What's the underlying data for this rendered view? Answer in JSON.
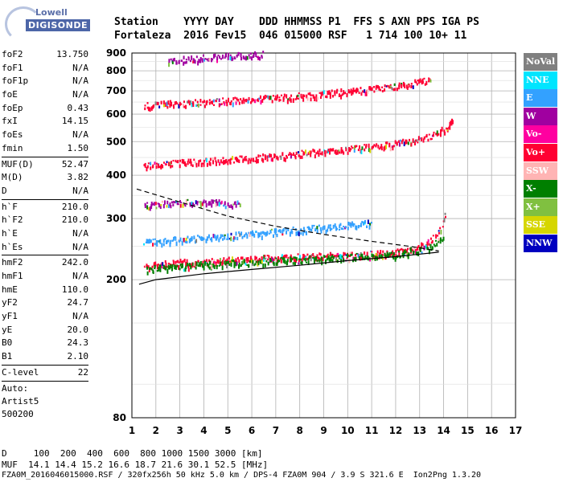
{
  "header": {
    "row1": "Station    YYYY DAY    DDD HHMMSS P1  FFS S AXN PPS IGA PS",
    "row2": "Fortaleza  2016 Fev15  046 015000 RSF   1 714 100 10+ 11"
  },
  "logo": {
    "line1": "Lowell",
    "line2": "DIGISONDE"
  },
  "params": [
    [
      {
        "k": "foF2",
        "v": "13.750"
      },
      {
        "k": "foF1",
        "v": "N/A"
      },
      {
        "k": "foF1p",
        "v": "N/A"
      },
      {
        "k": "foE",
        "v": "N/A"
      },
      {
        "k": "foEp",
        "v": "0.43"
      },
      {
        "k": "fxI",
        "v": "14.15"
      },
      {
        "k": "foEs",
        "v": "N/A"
      },
      {
        "k": "fmin",
        "v": "1.50"
      }
    ],
    [
      {
        "k": "MUF(D)",
        "v": "52.47"
      },
      {
        "k": "M(D)",
        "v": "3.82"
      },
      {
        "k": "D",
        "v": "N/A"
      }
    ],
    [
      {
        "k": "h`F",
        "v": "210.0"
      },
      {
        "k": "h`F2",
        "v": "210.0"
      },
      {
        "k": "h`E",
        "v": "N/A"
      },
      {
        "k": "h`Es",
        "v": "N/A"
      }
    ],
    [
      {
        "k": "hmF2",
        "v": "242.0"
      },
      {
        "k": "hmF1",
        "v": "N/A"
      },
      {
        "k": "hmE",
        "v": "110.0"
      },
      {
        "k": "yF2",
        "v": "24.7"
      },
      {
        "k": "yF1",
        "v": "N/A"
      },
      {
        "k": "yE",
        "v": "20.0"
      },
      {
        "k": "B0",
        "v": "24.3"
      },
      {
        "k": "B1",
        "v": "2.10"
      }
    ],
    [
      {
        "k": "C-level",
        "v": "22"
      }
    ]
  ],
  "extra": [
    "Auto:",
    "Artist5",
    "500200"
  ],
  "footer": {
    "line1": "D     100  200  400  600  800 1000 1500 3000 [km]",
    "line2": "MUF  14.1 14.4 15.2 16.6 18.7 21.6 30.1 52.5 [MHz]",
    "line3": "FZA0M_2016046015000.RSF / 320fx256h 50 kHz 5.0 km / DPS-4 FZA0M 904 / 3.9 S 321.6 E  Ion2Png 1.3.20"
  },
  "legend": [
    {
      "label": "NoVal",
      "color": "#808080"
    },
    {
      "label": "NNE",
      "color": "#00e5ff"
    },
    {
      "label": "E",
      "color": "#33a1ff"
    },
    {
      "label": "W",
      "color": "#a000a0"
    },
    {
      "label": "Vo-",
      "color": "#ff00a0"
    },
    {
      "label": "Vo+",
      "color": "#ff0033"
    },
    {
      "label": "SSW",
      "color": "#ffb4b4"
    },
    {
      "label": "X-",
      "color": "#007f00"
    },
    {
      "label": "X+",
      "color": "#80c040"
    },
    {
      "label": "SSE",
      "color": "#d6d600"
    },
    {
      "label": "NNW",
      "color": "#0000c0"
    }
  ],
  "chart_data": {
    "type": "scatter",
    "xlim": [
      1,
      17
    ],
    "ylim": [
      80,
      900
    ],
    "yscale": "log",
    "x_ticks": [
      1,
      2,
      3,
      4,
      5,
      6,
      7,
      8,
      9,
      10,
      11,
      12,
      13,
      14,
      15,
      16,
      17
    ],
    "y_ticks": [
      80,
      200,
      300,
      400,
      500,
      600,
      700,
      800,
      900
    ],
    "grid": true,
    "traces": [
      {
        "name": "F2-trace",
        "color": "#ff0033",
        "points": [
          [
            1.5,
            220
          ],
          [
            3,
            225
          ],
          [
            5,
            228
          ],
          [
            7,
            232
          ],
          [
            9,
            235
          ],
          [
            11,
            238
          ],
          [
            12.5,
            243
          ],
          [
            13.3,
            255
          ],
          [
            13.8,
            275
          ],
          [
            14.1,
            310
          ]
        ]
      },
      {
        "name": "F2-x",
        "color": "#007f00",
        "points": [
          [
            1.6,
            215
          ],
          [
            4,
            222
          ],
          [
            7,
            228
          ],
          [
            10,
            233
          ],
          [
            12,
            237
          ],
          [
            13.5,
            250
          ],
          [
            14,
            270
          ]
        ]
      },
      {
        "name": "E-trace",
        "color": "#33a1ff",
        "points": [
          [
            1.5,
            258
          ],
          [
            4,
            265
          ],
          [
            6,
            272
          ],
          [
            8,
            280
          ],
          [
            10,
            288
          ],
          [
            11,
            293
          ]
        ]
      },
      {
        "name": "W-cluster",
        "color": "#a000a0",
        "points": [
          [
            1.5,
            330
          ],
          [
            2.5,
            332
          ],
          [
            3.5,
            335
          ],
          [
            4.5,
            334
          ],
          [
            5.5,
            333
          ]
        ]
      },
      {
        "name": "2hop",
        "color": "#ff0033",
        "points": [
          [
            1.5,
            430
          ],
          [
            4,
            440
          ],
          [
            6,
            450
          ],
          [
            8,
            463
          ],
          [
            10,
            478
          ],
          [
            12,
            495
          ],
          [
            13.5,
            520
          ],
          [
            14.2,
            555
          ],
          [
            14.4,
            580
          ]
        ]
      },
      {
        "name": "3hop",
        "color": "#ff0033",
        "points": [
          [
            1.5,
            640
          ],
          [
            4,
            652
          ],
          [
            6,
            665
          ],
          [
            8,
            680
          ],
          [
            10,
            700
          ],
          [
            12,
            725
          ],
          [
            13.5,
            755
          ]
        ]
      },
      {
        "name": "4hop",
        "color": "#a000a0",
        "points": [
          [
            2.5,
            860
          ],
          [
            4,
            875
          ],
          [
            5.5,
            888
          ],
          [
            6.5,
            895
          ]
        ]
      }
    ],
    "curves": [
      {
        "name": "model-solid",
        "style": "solid",
        "points": [
          [
            1.3,
            194
          ],
          [
            2,
            200
          ],
          [
            4,
            208
          ],
          [
            6,
            214
          ],
          [
            8,
            220
          ],
          [
            10,
            227
          ],
          [
            12,
            233
          ],
          [
            13.8,
            240
          ]
        ]
      },
      {
        "name": "model-dashed",
        "style": "dashed",
        "points": [
          [
            1.2,
            365
          ],
          [
            3,
            335
          ],
          [
            5,
            305
          ],
          [
            7,
            285
          ],
          [
            9,
            270
          ],
          [
            11,
            258
          ],
          [
            12.5,
            250
          ],
          [
            13.8,
            242
          ]
        ]
      }
    ]
  }
}
